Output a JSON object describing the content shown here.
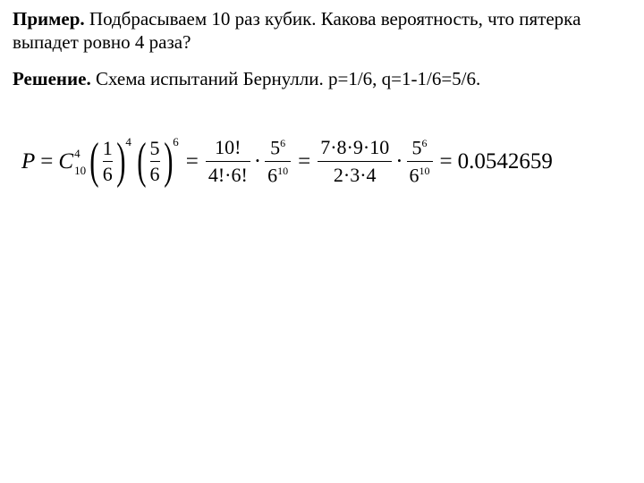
{
  "problem": {
    "label": "Пример.",
    "text": " Подбрасываем 10 раз кубик. Какова вероятность, что пятерка выпадет ровно 4 раза?"
  },
  "solution": {
    "label": "Решение.",
    "text": " Схема испытаний Бернулли. p=1/6, q=1-1/6=5/6."
  },
  "formula": {
    "P": "P",
    "eq": "=",
    "C": "C",
    "C_sup": "4",
    "C_sub": "10",
    "p_num": "1",
    "p_den": "6",
    "p_pow": "4",
    "q_num": "5",
    "q_den": "6",
    "q_pow": "6",
    "f1_num": "10!",
    "f1_den": "4!·6!",
    "f2_num_base": "5",
    "f2_num_exp": "6",
    "f2_den_base": "6",
    "f2_den_exp": "10",
    "f3_num": "7·8·9·10",
    "f3_den": "2·3·4",
    "result": "0.0542659"
  },
  "style": {
    "text_color": "#000000",
    "bg_color": "#ffffff",
    "body_fontsize": 21,
    "formula_fontsize": 25
  }
}
